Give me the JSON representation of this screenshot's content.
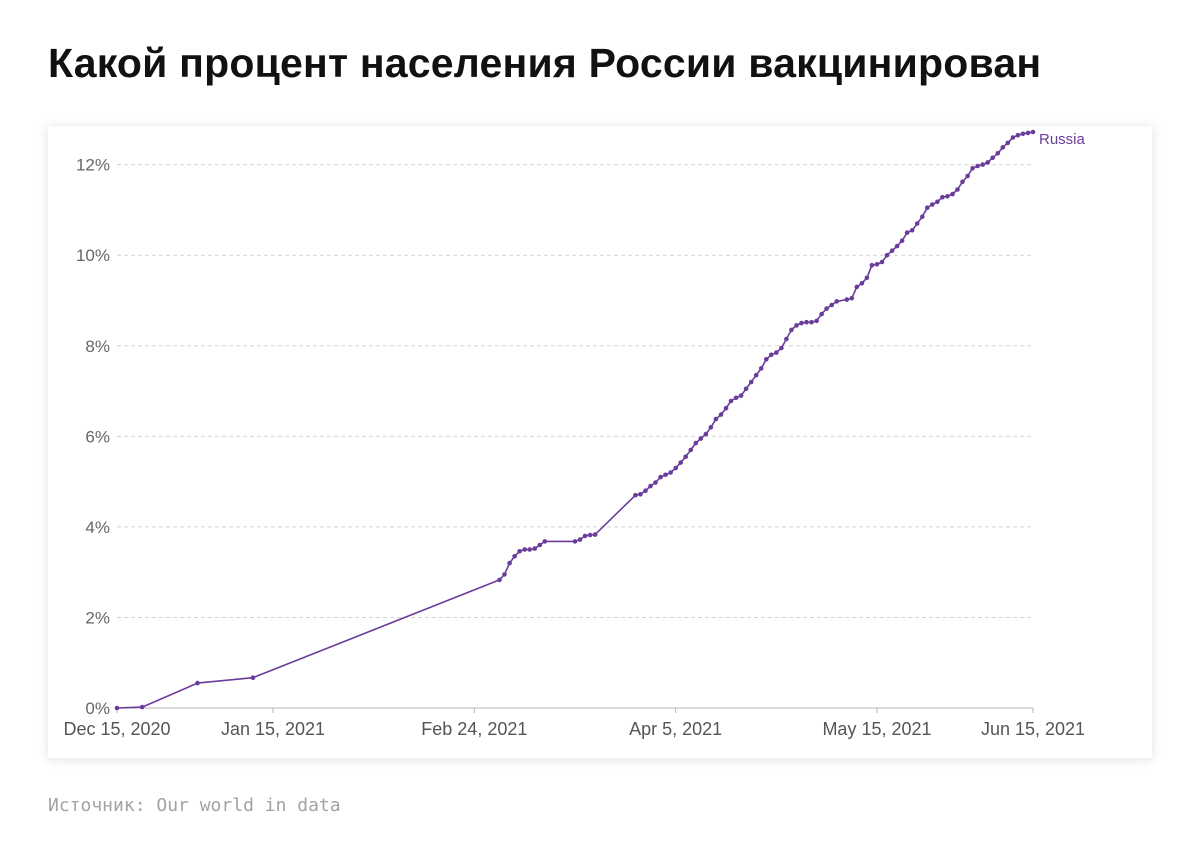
{
  "title": "Какой процент населения России вакцинирован",
  "source": "Источник: Our world in data",
  "chart_data": {
    "type": "line",
    "ylim": [
      0,
      12.5
    ],
    "y_ticks": [
      {
        "value": 0,
        "label": "0%"
      },
      {
        "value": 2,
        "label": "2%"
      },
      {
        "value": 4,
        "label": "4%"
      },
      {
        "value": 6,
        "label": "6%"
      },
      {
        "value": 8,
        "label": "8%"
      },
      {
        "value": 10,
        "label": "10%"
      },
      {
        "value": 12,
        "label": "12%"
      }
    ],
    "x_ticks": [
      "2020-12-15",
      "2021-01-15",
      "2021-02-24",
      "2021-04-05",
      "2021-05-15",
      "2021-06-15"
    ],
    "x_tick_labels": [
      "Dec 15, 2020",
      "Jan 15, 2021",
      "Feb 24, 2021",
      "Apr 5, 2021",
      "May 15, 2021",
      "Jun 15, 2021"
    ],
    "grid": "horizontal dashed",
    "color": "#6a3d9a",
    "series": [
      {
        "name": "Russia",
        "points": [
          [
            "2020-12-15",
            0.0
          ],
          [
            "2020-12-20",
            0.02
          ],
          [
            "2020-12-31",
            0.55
          ],
          [
            "2021-01-11",
            0.67
          ],
          [
            "2021-03-01",
            2.83
          ],
          [
            "2021-03-02",
            2.95
          ],
          [
            "2021-03-03",
            3.2
          ],
          [
            "2021-03-04",
            3.35
          ],
          [
            "2021-03-05",
            3.46
          ],
          [
            "2021-03-06",
            3.5
          ],
          [
            "2021-03-07",
            3.5
          ],
          [
            "2021-03-08",
            3.52
          ],
          [
            "2021-03-09",
            3.6
          ],
          [
            "2021-03-10",
            3.68
          ],
          [
            "2021-03-16",
            3.68
          ],
          [
            "2021-03-17",
            3.72
          ],
          [
            "2021-03-18",
            3.8
          ],
          [
            "2021-03-19",
            3.82
          ],
          [
            "2021-03-20",
            3.83
          ],
          [
            "2021-03-28",
            4.7
          ],
          [
            "2021-03-29",
            4.72
          ],
          [
            "2021-03-30",
            4.8
          ],
          [
            "2021-03-31",
            4.9
          ],
          [
            "2021-04-01",
            4.98
          ],
          [
            "2021-04-02",
            5.1
          ],
          [
            "2021-04-03",
            5.15
          ],
          [
            "2021-04-04",
            5.2
          ],
          [
            "2021-04-05",
            5.3
          ],
          [
            "2021-04-06",
            5.42
          ],
          [
            "2021-04-07",
            5.55
          ],
          [
            "2021-04-08",
            5.7
          ],
          [
            "2021-04-09",
            5.85
          ],
          [
            "2021-04-10",
            5.95
          ],
          [
            "2021-04-11",
            6.05
          ],
          [
            "2021-04-12",
            6.2
          ],
          [
            "2021-04-13",
            6.38
          ],
          [
            "2021-04-14",
            6.48
          ],
          [
            "2021-04-15",
            6.62
          ],
          [
            "2021-04-16",
            6.78
          ],
          [
            "2021-04-17",
            6.85
          ],
          [
            "2021-04-18",
            6.9
          ],
          [
            "2021-04-19",
            7.05
          ],
          [
            "2021-04-20",
            7.2
          ],
          [
            "2021-04-21",
            7.35
          ],
          [
            "2021-04-22",
            7.5
          ],
          [
            "2021-04-23",
            7.7
          ],
          [
            "2021-04-24",
            7.8
          ],
          [
            "2021-04-25",
            7.85
          ],
          [
            "2021-04-26",
            7.95
          ],
          [
            "2021-04-27",
            8.15
          ],
          [
            "2021-04-28",
            8.35
          ],
          [
            "2021-04-29",
            8.45
          ],
          [
            "2021-04-30",
            8.5
          ],
          [
            "2021-05-01",
            8.52
          ],
          [
            "2021-05-02",
            8.52
          ],
          [
            "2021-05-03",
            8.55
          ],
          [
            "2021-05-04",
            8.7
          ],
          [
            "2021-05-05",
            8.82
          ],
          [
            "2021-05-06",
            8.9
          ],
          [
            "2021-05-07",
            8.98
          ],
          [
            "2021-05-09",
            9.02
          ],
          [
            "2021-05-10",
            9.05
          ],
          [
            "2021-05-11",
            9.3
          ],
          [
            "2021-05-12",
            9.38
          ],
          [
            "2021-05-13",
            9.5
          ],
          [
            "2021-05-14",
            9.78
          ],
          [
            "2021-05-15",
            9.8
          ],
          [
            "2021-05-16",
            9.85
          ],
          [
            "2021-05-17",
            10.0
          ],
          [
            "2021-05-18",
            10.1
          ],
          [
            "2021-05-19",
            10.2
          ],
          [
            "2021-05-20",
            10.32
          ],
          [
            "2021-05-21",
            10.5
          ],
          [
            "2021-05-22",
            10.55
          ],
          [
            "2021-05-23",
            10.7
          ],
          [
            "2021-05-24",
            10.85
          ],
          [
            "2021-05-25",
            11.05
          ],
          [
            "2021-05-26",
            11.12
          ],
          [
            "2021-05-27",
            11.18
          ],
          [
            "2021-05-28",
            11.28
          ],
          [
            "2021-05-29",
            11.3
          ],
          [
            "2021-05-30",
            11.35
          ],
          [
            "2021-05-31",
            11.45
          ],
          [
            "2021-06-01",
            11.62
          ],
          [
            "2021-06-02",
            11.75
          ],
          [
            "2021-06-03",
            11.92
          ],
          [
            "2021-06-04",
            11.97
          ],
          [
            "2021-06-05",
            12.0
          ],
          [
            "2021-06-06",
            12.05
          ],
          [
            "2021-06-07",
            12.15
          ],
          [
            "2021-06-08",
            12.25
          ],
          [
            "2021-06-09",
            12.38
          ],
          [
            "2021-06-10",
            12.48
          ],
          [
            "2021-06-11",
            12.6
          ],
          [
            "2021-06-12",
            12.65
          ],
          [
            "2021-06-13",
            12.68
          ],
          [
            "2021-06-14",
            12.7
          ],
          [
            "2021-06-15",
            12.72
          ]
        ]
      }
    ]
  }
}
